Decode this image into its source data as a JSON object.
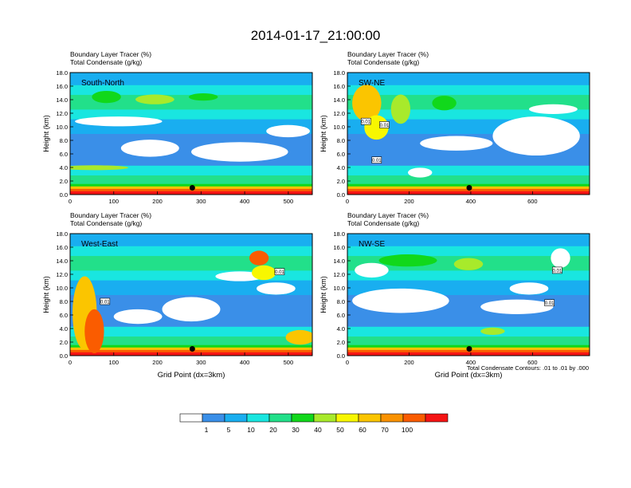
{
  "title": "2014-01-17_21:00:00",
  "footnote": "Total Condensate Contours: .01 to .01 by .000",
  "colorbar": {
    "levels": [
      "1",
      "5",
      "10",
      "20",
      "30",
      "40",
      "50",
      "60",
      "70",
      "100"
    ],
    "colors": [
      "#ffffff",
      "#3a8fe8",
      "#19aef0",
      "#19e6e0",
      "#22e08a",
      "#11d81b",
      "#a8ea2b",
      "#f8f700",
      "#fbc500",
      "#fa9200",
      "#fa5c00",
      "#f51414"
    ]
  },
  "contour_label": "0.01",
  "chart_data": [
    {
      "type": "heatmap",
      "name": "South-North",
      "panel_label": "South-North",
      "header": [
        "Boundary Layer Tracer   (%)",
        "Total Condensate   (g/kg)"
      ],
      "ylabel": "Height (km)",
      "xlabel": "",
      "yticks": [
        "0.0",
        "2.0",
        "4.0",
        "6.0",
        "8.0",
        "10.0",
        "12.0",
        "14.0",
        "16.0",
        "18.0"
      ],
      "xticks": [
        0,
        100,
        200,
        300,
        400,
        500
      ],
      "xlim": [
        0,
        555
      ],
      "ylim": [
        0,
        18
      ],
      "marker": {
        "x": 280,
        "y": 1.0
      },
      "contour_labels": []
    },
    {
      "type": "heatmap",
      "name": "SW-NE",
      "panel_label": "SW-NE",
      "header": [
        "Boundary Layer Tracer   (%)",
        "Total Condensate   (g/kg)"
      ],
      "ylabel": "Height (km)",
      "xlabel": "",
      "yticks": [
        "0.0",
        "2.0",
        "4.0",
        "6.0",
        "8.0",
        "10.0",
        "12.0",
        "14.0",
        "16.0",
        "18.0"
      ],
      "xticks": [
        0,
        200,
        400,
        600
      ],
      "xlim": [
        0,
        785
      ],
      "ylim": [
        0,
        18
      ],
      "marker": {
        "x": 395,
        "y": 1.0
      },
      "contour_labels": [
        {
          "x": 60,
          "y": 10.8
        },
        {
          "x": 120,
          "y": 10.3
        },
        {
          "x": 95,
          "y": 5.1
        }
      ]
    },
    {
      "type": "heatmap",
      "name": "West-East",
      "panel_label": "West-East",
      "header": [
        "Boundary Layer Tracer   (%)",
        "Total Condensate   (g/kg)"
      ],
      "ylabel": "Height (km)",
      "xlabel": "Grid Point (dx=3km)",
      "yticks": [
        "0.0",
        "2.0",
        "4.0",
        "6.0",
        "8.0",
        "10.0",
        "12.0",
        "14.0",
        "16.0",
        "18.0"
      ],
      "xticks": [
        0,
        100,
        200,
        300,
        400,
        500
      ],
      "xlim": [
        0,
        555
      ],
      "ylim": [
        0,
        18
      ],
      "marker": {
        "x": 280,
        "y": 1.0
      },
      "contour_labels": [
        {
          "x": 80,
          "y": 8.0
        },
        {
          "x": 480,
          "y": 12.4
        }
      ]
    },
    {
      "type": "heatmap",
      "name": "NW-SE",
      "panel_label": "NW-SE",
      "header": [
        "Boundary Layer Tracer   (%)",
        "Total Condensate   (g/kg)"
      ],
      "ylabel": "Height (km)",
      "xlabel": "Grid Point (dx=3km)",
      "yticks": [
        "0.0",
        "2.0",
        "4.0",
        "6.0",
        "8.0",
        "10.0",
        "12.0",
        "14.0",
        "16.0",
        "18.0"
      ],
      "xticks": [
        0,
        200,
        400,
        600
      ],
      "xlim": [
        0,
        785
      ],
      "ylim": [
        0,
        18
      ],
      "marker": {
        "x": 395,
        "y": 1.0
      },
      "contour_labels": [
        {
          "x": 680,
          "y": 12.6
        },
        {
          "x": 655,
          "y": 7.8
        }
      ]
    }
  ]
}
